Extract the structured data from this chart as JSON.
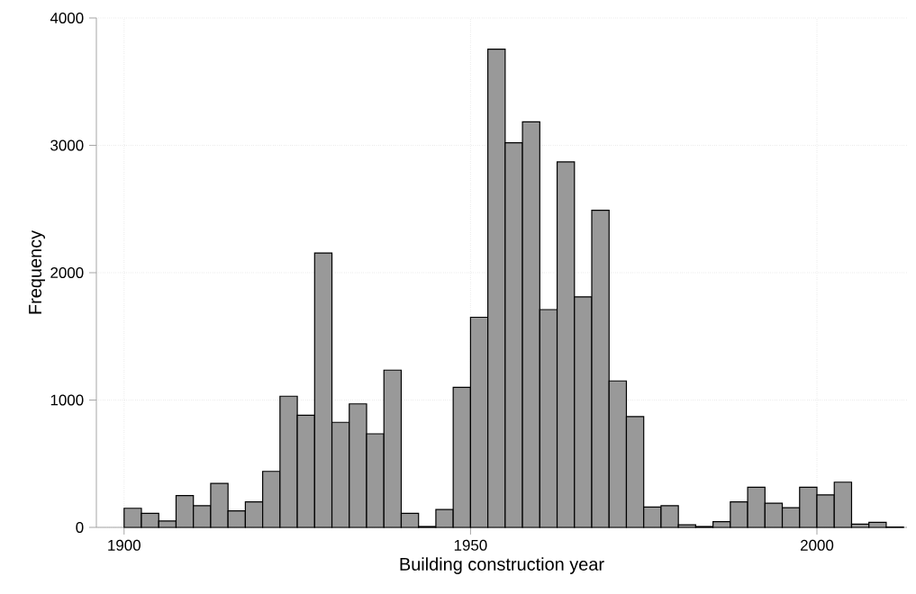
{
  "chart_data": {
    "type": "histogram",
    "xlabel": "Building construction year",
    "ylabel": "Frequency",
    "bins": [
      1900,
      1902.5,
      1905,
      1907.5,
      1910,
      1912.5,
      1915,
      1917.5,
      1920,
      1922.5,
      1925,
      1927.5,
      1930,
      1932.5,
      1935,
      1937.5,
      1940,
      1942.5,
      1945,
      1947.5,
      1950,
      1952.5,
      1955,
      1957.5,
      1960,
      1962.5,
      1965,
      1967.5,
      1970,
      1972.5,
      1975,
      1977.5,
      1980,
      1982.5,
      1985,
      1987.5,
      1990,
      1992.5,
      1995,
      1997.5,
      2000,
      2002.5,
      2005,
      2007.5,
      2010,
      2012.5
    ],
    "values": [
      150,
      110,
      50,
      250,
      170,
      345,
      130,
      200,
      440,
      1030,
      880,
      2155,
      825,
      970,
      735,
      1235,
      110,
      7,
      140,
      1100,
      1650,
      3755,
      3020,
      3185,
      1710,
      2870,
      1810,
      2490,
      1150,
      870,
      160,
      170,
      20,
      7,
      45,
      200,
      315,
      190,
      155,
      315,
      255,
      355,
      25,
      40,
      3
    ],
    "color": "#999999",
    "xlim": [
      1896,
      2013
    ],
    "ylim": [
      0,
      4000
    ],
    "xticks": [
      1900,
      1950,
      2000
    ],
    "yticks": [
      0,
      1000,
      2000,
      3000,
      4000
    ],
    "grid": true
  }
}
